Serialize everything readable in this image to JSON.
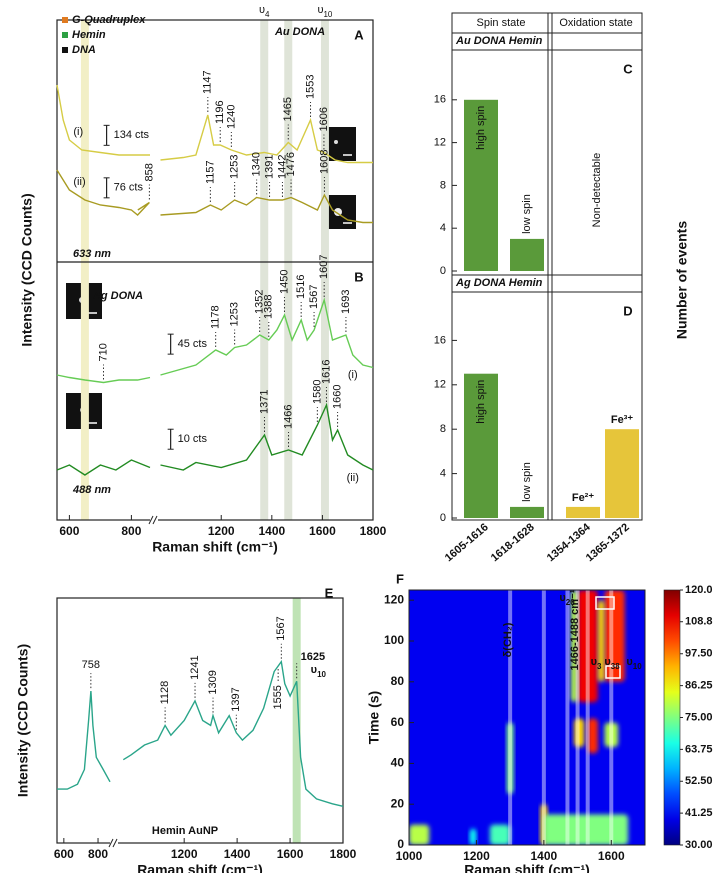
{
  "chart_data": [
    {
      "type": "spectra",
      "ylabel": "Intensity (CCD Counts)",
      "xlabel": "Raman shift (cm⁻¹)",
      "xlim": [
        560,
        1800
      ],
      "x_break": [
        860,
        950
      ],
      "xticks": [
        600,
        800,
        1200,
        1400,
        1600,
        1800
      ],
      "ylim": [
        0,
        100
      ],
      "legend": [
        {
          "name": "G-Quadruplex",
          "color": "#e07b20"
        },
        {
          "name": "Hemin",
          "color": "#2ea043"
        },
        {
          "name": "DNA",
          "color": "#111111"
        }
      ],
      "bands": [
        {
          "x": 650,
          "color": "#f2efc6"
        },
        {
          "x": 1370,
          "color": "#dfe4d8"
        },
        {
          "x": 1465,
          "color": "#dfe4d8"
        },
        {
          "x": 1610,
          "color": "#dfe4d8"
        }
      ],
      "band_labels": [
        {
          "x": 1370,
          "symbol": "υ",
          "sub": "4"
        },
        {
          "x": 1610,
          "symbol": "υ",
          "sub": "10"
        }
      ],
      "panels": [
        {
          "label": "A",
          "title": "Au DONA",
          "laser": "633 nm",
          "series": [
            {
              "name": "(i)",
              "scale": "134 cts",
              "color": "#d6cc45",
              "x": [
                560,
                580,
                600,
                640,
                700,
                760,
                820,
                860,
                900,
                960,
                1050,
                1100,
                1147,
                1170,
                1196,
                1240,
                1300,
                1370,
                1420,
                1465,
                1500,
                1553,
                1580,
                1606,
                1650,
                1700,
                1760,
                1800
              ],
              "values": [
                87,
                80,
                76,
                74,
                73.5,
                73,
                73,
                73,
                null,
                72,
                72.5,
                73,
                81,
                75,
                75,
                74,
                73,
                73.5,
                73,
                75.5,
                74,
                80,
                74,
                73.5,
                72,
                71.5,
                71.5,
                71.5
              ],
              "peaks": [
                {
                  "value": 1147,
                  "color": "#2ea043"
                },
                {
                  "value": 1196,
                  "color": "#e07b20"
                },
                {
                  "value": 1240,
                  "color": "#2ea043"
                },
                {
                  "value": 1465,
                  "color": "#e07b20"
                },
                {
                  "value": 1553,
                  "color": "#2ea043"
                },
                {
                  "value": 1606,
                  "color": "#2ea043"
                }
              ]
            },
            {
              "name": "(ii)",
              "scale": "76 cts",
              "color": "#a89b22",
              "x": [
                560,
                600,
                650,
                700,
                760,
                800,
                820,
                858,
                870,
                900,
                960,
                1100,
                1157,
                1200,
                1253,
                1300,
                1340,
                1391,
                1442,
                1476,
                1520,
                1580,
                1608,
                1640,
                1700,
                1760,
                1800
              ],
              "values": [
                70,
                66,
                64,
                63,
                62.5,
                62,
                61,
                63.5,
                62,
                null,
                61,
                61.5,
                63,
                62,
                64,
                63,
                64.5,
                64,
                64,
                64.5,
                63.5,
                62,
                65,
                62,
                60,
                59.5,
                59.5
              ],
              "peaks": [
                {
                  "value": 858,
                  "color": "#111111"
                },
                {
                  "value": 1157,
                  "color": "#2ea043"
                },
                {
                  "value": 1253,
                  "color": "#2ea043"
                },
                {
                  "value": 1340,
                  "color": "#111111"
                },
                {
                  "value": 1391,
                  "color": "#e07b20"
                },
                {
                  "value": 1442,
                  "color": "#e07b20"
                },
                {
                  "value": 1476,
                  "color": "#e07b20"
                },
                {
                  "value": 1608,
                  "color": "#2ea043"
                }
              ]
            }
          ]
        },
        {
          "label": "B",
          "title": "Ag DONA",
          "laser": "488 nm",
          "series": [
            {
              "name": "(i)",
              "scale": "45 cts",
              "color": "#66cc55",
              "x": [
                560,
                600,
                650,
                710,
                760,
                820,
                860,
                900,
                960,
                1100,
                1178,
                1220,
                1253,
                1300,
                1352,
                1388,
                1420,
                1450,
                1480,
                1516,
                1540,
                1567,
                1607,
                1640,
                1693,
                1720,
                1760,
                1800
              ],
              "values": [
                29,
                28.5,
                28,
                27.5,
                28,
                28,
                28.5,
                null,
                29,
                31,
                34,
                33,
                34.5,
                35,
                37,
                36,
                38,
                41,
                36,
                40,
                36,
                38,
                44,
                36,
                37,
                33,
                31,
                30.5
              ],
              "peaks": [
                {
                  "value": 710,
                  "color": "#111111"
                },
                {
                  "value": 1178,
                  "color": "#e07b20"
                },
                {
                  "value": 1253,
                  "color": "#2ea043"
                },
                {
                  "value": 1352,
                  "color": "#111111"
                },
                {
                  "value": 1388,
                  "color": "#e07b20"
                },
                {
                  "value": 1450,
                  "color": "#e07b20"
                },
                {
                  "value": 1516,
                  "color": "#e07b20"
                },
                {
                  "value": 1567,
                  "color": "#2ea043"
                },
                {
                  "value": 1607,
                  "color": "#2ea043"
                },
                {
                  "value": 1693,
                  "color": "#e07b20"
                }
              ]
            },
            {
              "name": "(ii)",
              "scale": "10 cts",
              "color": "#228b22",
              "x": [
                560,
                600,
                650,
                700,
                750,
                800,
                860,
                900,
                960,
                1050,
                1100,
                1200,
                1300,
                1371,
                1400,
                1466,
                1520,
                1580,
                1616,
                1640,
                1660,
                1700,
                1760,
                1800
              ],
              "values": [
                10,
                11,
                9,
                11,
                10,
                12,
                10.5,
                null,
                11,
                10,
                11.5,
                10.5,
                12,
                17,
                13,
                14,
                13,
                19,
                23,
                16,
                18,
                13,
                11,
                10
              ],
              "peaks": [
                {
                  "value": 1371,
                  "color": "#2ea043"
                },
                {
                  "value": 1466,
                  "color": "#e07b20"
                },
                {
                  "value": 1580,
                  "color": "#111111"
                },
                {
                  "value": 1616,
                  "color": "#2ea043"
                },
                {
                  "value": 1660,
                  "color": "#e07b20"
                }
              ]
            }
          ]
        }
      ]
    },
    {
      "type": "bar",
      "column_headers": [
        "Spin state",
        "Oxidation state"
      ],
      "ylabel": "Number of events",
      "categories": [
        "1605-1616",
        "1618-1628",
        "1354-1364",
        "1365-1372"
      ],
      "colors": [
        "#5a9a3a",
        "#5a9a3a",
        "#e6c53a",
        "#e6c53a"
      ],
      "ylim": [
        0,
        20
      ],
      "yticks": [
        0,
        4,
        8,
        12,
        16
      ],
      "panels": [
        {
          "label": "C",
          "title": "Au DONA Hemin",
          "values": [
            16,
            3,
            null,
            null
          ],
          "bar_labels": [
            "high spin",
            "low spin",
            null,
            null
          ],
          "note": "Non-detectable"
        },
        {
          "label": "D",
          "title": "Ag DONA Hemin",
          "values": [
            13,
            1,
            1,
            8
          ],
          "bar_labels": [
            "high spin",
            "low spin",
            "Fe²⁺",
            "Fe³⁺"
          ]
        }
      ]
    },
    {
      "type": "spectra",
      "ylabel": "Intensity (CCD Counts)",
      "xlabel": "Raman shift (cm⁻¹)",
      "xlim": [
        560,
        1800
      ],
      "x_break": [
        870,
        950
      ],
      "xticks": [
        600,
        800,
        1200,
        1400,
        1600,
        1800
      ],
      "ylim": [
        0,
        100
      ],
      "bands": [
        {
          "x": 1625,
          "color": "#bfe3b5"
        }
      ],
      "band_labels": [
        {
          "x": 1625,
          "symbol": "υ",
          "sub": "10"
        }
      ],
      "panels": [
        {
          "label": "E",
          "title": "Hemin AuNP",
          "series": [
            {
              "color": "#2aa58a",
              "x": [
                560,
                620,
                680,
                720,
                745,
                758,
                770,
                790,
                830,
                870,
                900,
                970,
                1000,
                1050,
                1100,
                1128,
                1150,
                1200,
                1241,
                1270,
                1300,
                1309,
                1330,
                1370,
                1397,
                1420,
                1460,
                1500,
                1540,
                1567,
                1580,
                1600,
                1625,
                1640,
                1660,
                1700,
                1760,
                1800
              ],
              "values": [
                22,
                22,
                24,
                30,
                50,
                62,
                48,
                35,
                30,
                25,
                null,
                34,
                36,
                40,
                42,
                48,
                44,
                50,
                58,
                50,
                48,
                52,
                45,
                52,
                45,
                42,
                46,
                55,
                70,
                74,
                65,
                60,
                66,
                35,
                22,
                18,
                16,
                15
              ],
              "peaks": [
                {
                  "value": 758,
                  "color": "#333333"
                },
                {
                  "value": 1128,
                  "color": "#333333"
                },
                {
                  "value": 1241,
                  "color": "#333333"
                },
                {
                  "value": 1309,
                  "color": "#333333"
                },
                {
                  "value": 1397,
                  "color": "#333333"
                },
                {
                  "value": 1567,
                  "color": "#333333"
                },
                {
                  "value": 1625,
                  "color": "#333333"
                }
              ],
              "peaks_below": [
                1555
              ]
            }
          ]
        }
      ]
    },
    {
      "type": "heatmap",
      "xlabel": "Raman shift (cm⁻¹)",
      "ylabel": "Time (s)",
      "xlim": [
        1000,
        1700
      ],
      "xticks": [
        1000,
        1200,
        1400,
        1600
      ],
      "ylim": [
        0,
        125
      ],
      "yticks": [
        0,
        20,
        40,
        60,
        80,
        100,
        120
      ],
      "clim": [
        30,
        120
      ],
      "cticks": [
        {
          "value": 120,
          "label": "120.0"
        },
        108.8,
        {
          "value": 97.5,
          "label": "97.50"
        },
        86.25,
        {
          "value": 75,
          "label": "75.00"
        },
        63.75,
        {
          "value": 52.5,
          "label": "52.50"
        },
        41.25,
        {
          "value": 30,
          "label": "30.00"
        }
      ],
      "regions": [
        {
          "x": [
            1000,
            1700
          ],
          "t": [
            0,
            125
          ],
          "value": 40
        },
        {
          "x": [
            1500,
            1560
          ],
          "t": [
            70,
            125
          ],
          "value": 110
        },
        {
          "x": [
            1580,
            1640
          ],
          "t": [
            80,
            125
          ],
          "value": 105
        },
        {
          "x": [
            1480,
            1500
          ],
          "t": [
            70,
            125
          ],
          "value": 80
        },
        {
          "x": [
            1560,
            1580
          ],
          "t": [
            80,
            120
          ],
          "value": 90
        },
        {
          "x": [
            1530,
            1560
          ],
          "t": [
            45,
            62
          ],
          "value": 105
        },
        {
          "x": [
            1490,
            1520
          ],
          "t": [
            48,
            62
          ],
          "value": 90
        },
        {
          "x": [
            1580,
            1620
          ],
          "t": [
            48,
            60
          ],
          "value": 80
        },
        {
          "x": [
            1290,
            1310
          ],
          "t": [
            25,
            60
          ],
          "value": 75
        },
        {
          "x": [
            1390,
            1410
          ],
          "t": [
            0,
            20
          ],
          "value": 90
        },
        {
          "x": [
            1000,
            1060
          ],
          "t": [
            0,
            10
          ],
          "value": 80
        },
        {
          "x": [
            1240,
            1300
          ],
          "t": [
            0,
            10
          ],
          "value": 70
        },
        {
          "x": [
            1400,
            1650
          ],
          "t": [
            0,
            15
          ],
          "value": 75
        },
        {
          "x": [
            1180,
            1200
          ],
          "t": [
            0,
            8
          ],
          "value": 65
        }
      ],
      "guides": [
        1300,
        1400,
        1470,
        1500,
        1530,
        1600
      ],
      "annotations": [
        {
          "text": "δ(CH₂)"
        },
        {
          "symbol": "υ",
          "sub": "20"
        },
        {
          "text": "1466-1488 cm⁻¹"
        },
        {
          "symbol": "υ",
          "sub": "3"
        },
        {
          "symbol": "υ",
          "sub": "38"
        },
        {
          "symbol": "υ",
          "sub": "10"
        }
      ],
      "label": "F"
    }
  ]
}
